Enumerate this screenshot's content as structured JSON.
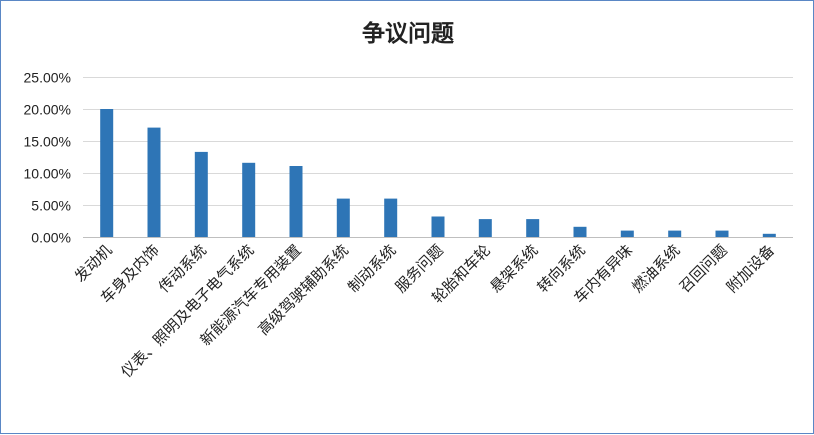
{
  "chart_data": {
    "type": "bar",
    "title": "争议问题",
    "xlabel": "",
    "ylabel": "",
    "ylim": [
      0,
      0.25
    ],
    "yticks": [
      "0.00%",
      "5.00%",
      "10.00%",
      "15.00%",
      "20.00%",
      "25.00%"
    ],
    "grid": true,
    "legend": "none",
    "bar_color": "#2e75b6",
    "categories": [
      "发动机",
      "车身及内饰",
      "传动系统",
      "仪表、照明及电子电气系统",
      "新能源汽车专用装置",
      "高级驾驶辅助系统",
      "制动系统",
      "服务问题",
      "轮胎和车轮",
      "悬架系统",
      "转向系统",
      "车内有异味",
      "燃油系统",
      "召回问题",
      "附加设备"
    ],
    "values": [
      0.2,
      0.171,
      0.133,
      0.116,
      0.111,
      0.06,
      0.06,
      0.032,
      0.028,
      0.028,
      0.016,
      0.01,
      0.01,
      0.01,
      0.005
    ]
  }
}
